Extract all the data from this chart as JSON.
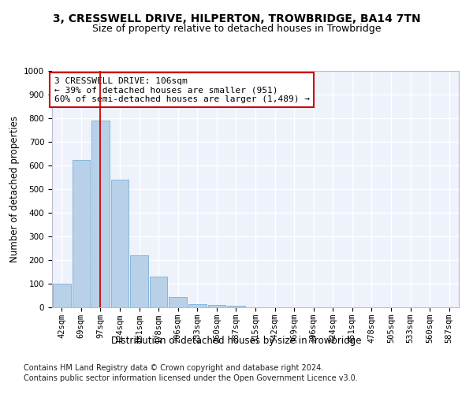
{
  "title1": "3, CRESSWELL DRIVE, HILPERTON, TROWBRIDGE, BA14 7TN",
  "title2": "Size of property relative to detached houses in Trowbridge",
  "xlabel": "Distribution of detached houses by size in Trowbridge",
  "ylabel": "Number of detached properties",
  "bar_color": "#b8d0e8",
  "bar_edge_color": "#7aafd4",
  "bin_labels": [
    "42sqm",
    "69sqm",
    "97sqm",
    "124sqm",
    "151sqm",
    "178sqm",
    "206sqm",
    "233sqm",
    "260sqm",
    "287sqm",
    "315sqm",
    "342sqm",
    "369sqm",
    "396sqm",
    "424sqm",
    "451sqm",
    "478sqm",
    "505sqm",
    "533sqm",
    "560sqm",
    "587sqm"
  ],
  "bar_values": [
    100,
    625,
    790,
    540,
    220,
    130,
    42,
    12,
    10,
    8,
    0,
    0,
    0,
    0,
    0,
    0,
    0,
    0,
    0,
    0,
    0
  ],
  "ylim": [
    0,
    1000
  ],
  "yticks": [
    0,
    100,
    200,
    300,
    400,
    500,
    600,
    700,
    800,
    900,
    1000
  ],
  "vline_x_index": 2,
  "vline_color": "#cc0000",
  "annotation_line1": "3 CRESSWELL DRIVE: 106sqm",
  "annotation_line2": "← 39% of detached houses are smaller (951)",
  "annotation_line3": "60% of semi-detached houses are larger (1,489) →",
  "annotation_box_color": "white",
  "annotation_box_edge_color": "#cc0000",
  "footnote1": "Contains HM Land Registry data © Crown copyright and database right 2024.",
  "footnote2": "Contains public sector information licensed under the Open Government Licence v3.0.",
  "background_color": "#eef2fb",
  "grid_color": "white",
  "title1_fontsize": 10,
  "title2_fontsize": 9,
  "axis_label_fontsize": 8.5,
  "tick_fontsize": 7.5,
  "annotation_fontsize": 8,
  "footnote_fontsize": 7
}
